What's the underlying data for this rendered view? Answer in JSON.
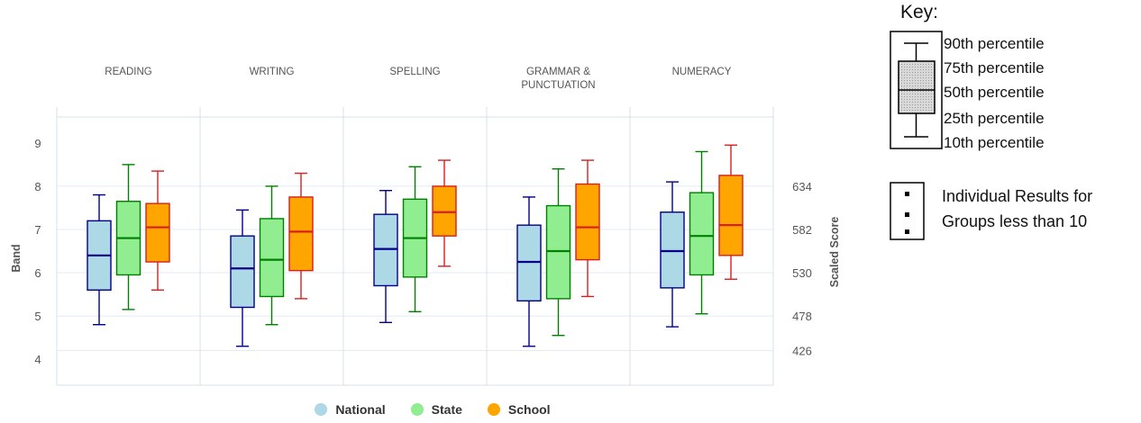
{
  "chart_data": {
    "type": "box",
    "categories": [
      {
        "label_lines": [
          "READING"
        ]
      },
      {
        "label_lines": [
          "WRITING"
        ]
      },
      {
        "label_lines": [
          "SPELLING"
        ]
      },
      {
        "label_lines": [
          "GRAMMAR &",
          "PUNCTUATION"
        ]
      },
      {
        "label_lines": [
          "NUMERACY"
        ]
      }
    ],
    "series": [
      {
        "name": "National",
        "fill": "#add8e6",
        "stroke": "#00008b",
        "boxes": [
          {
            "p10": 4.8,
            "p25": 5.6,
            "p50": 6.4,
            "p75": 7.2,
            "p90": 7.8
          },
          {
            "p10": 4.3,
            "p25": 5.2,
            "p50": 6.1,
            "p75": 6.85,
            "p90": 7.45
          },
          {
            "p10": 4.85,
            "p25": 5.7,
            "p50": 6.55,
            "p75": 7.35,
            "p90": 7.9
          },
          {
            "p10": 4.3,
            "p25": 5.35,
            "p50": 6.25,
            "p75": 7.1,
            "p90": 7.75
          },
          {
            "p10": 4.75,
            "p25": 5.65,
            "p50": 6.5,
            "p75": 7.4,
            "p90": 8.1
          }
        ]
      },
      {
        "name": "State",
        "fill": "#90ee90",
        "stroke": "#008000",
        "boxes": [
          {
            "p10": 5.15,
            "p25": 5.95,
            "p50": 6.8,
            "p75": 7.65,
            "p90": 8.5
          },
          {
            "p10": 4.8,
            "p25": 5.45,
            "p50": 6.3,
            "p75": 7.25,
            "p90": 8.0
          },
          {
            "p10": 5.1,
            "p25": 5.9,
            "p50": 6.8,
            "p75": 7.7,
            "p90": 8.45
          },
          {
            "p10": 4.55,
            "p25": 5.4,
            "p50": 6.5,
            "p75": 7.55,
            "p90": 8.4
          },
          {
            "p10": 5.05,
            "p25": 5.95,
            "p50": 6.85,
            "p75": 7.85,
            "p90": 8.8
          }
        ]
      },
      {
        "name": "School",
        "fill": "#ffa500",
        "stroke": "#d81f1f",
        "boxes": [
          {
            "p10": 5.6,
            "p25": 6.25,
            "p50": 7.05,
            "p75": 7.6,
            "p90": 8.35
          },
          {
            "p10": 5.4,
            "p25": 6.05,
            "p50": 6.95,
            "p75": 7.75,
            "p90": 8.3
          },
          {
            "p10": 6.15,
            "p25": 6.85,
            "p50": 7.4,
            "p75": 8.0,
            "p90": 8.6
          },
          {
            "p10": 5.45,
            "p25": 6.3,
            "p50": 7.05,
            "p75": 8.05,
            "p90": 8.6
          },
          {
            "p10": 5.85,
            "p25": 6.4,
            "p50": 7.1,
            "p75": 8.25,
            "p90": 8.95
          }
        ]
      }
    ],
    "y_left": {
      "label": "Band",
      "ticks": [
        4,
        5,
        6,
        7,
        8,
        9
      ],
      "range": [
        3.4,
        9.6
      ]
    },
    "y_right": {
      "label": "Scaled Score",
      "ticks": [
        426,
        478,
        530,
        582,
        634
      ],
      "band_values": [
        4.2,
        5.0,
        6.0,
        7.0,
        8.0
      ]
    },
    "grid": true,
    "legend": {
      "placement": "bottom",
      "entries": [
        "National",
        "State",
        "School"
      ]
    }
  },
  "key": {
    "title": "Key:",
    "labels": [
      "90th percentile",
      "75th percentile",
      "50th percentile",
      "25th percentile",
      "10th percentile"
    ],
    "note_line1": "Individual Results for",
    "note_line2": "Groups less than 10"
  }
}
